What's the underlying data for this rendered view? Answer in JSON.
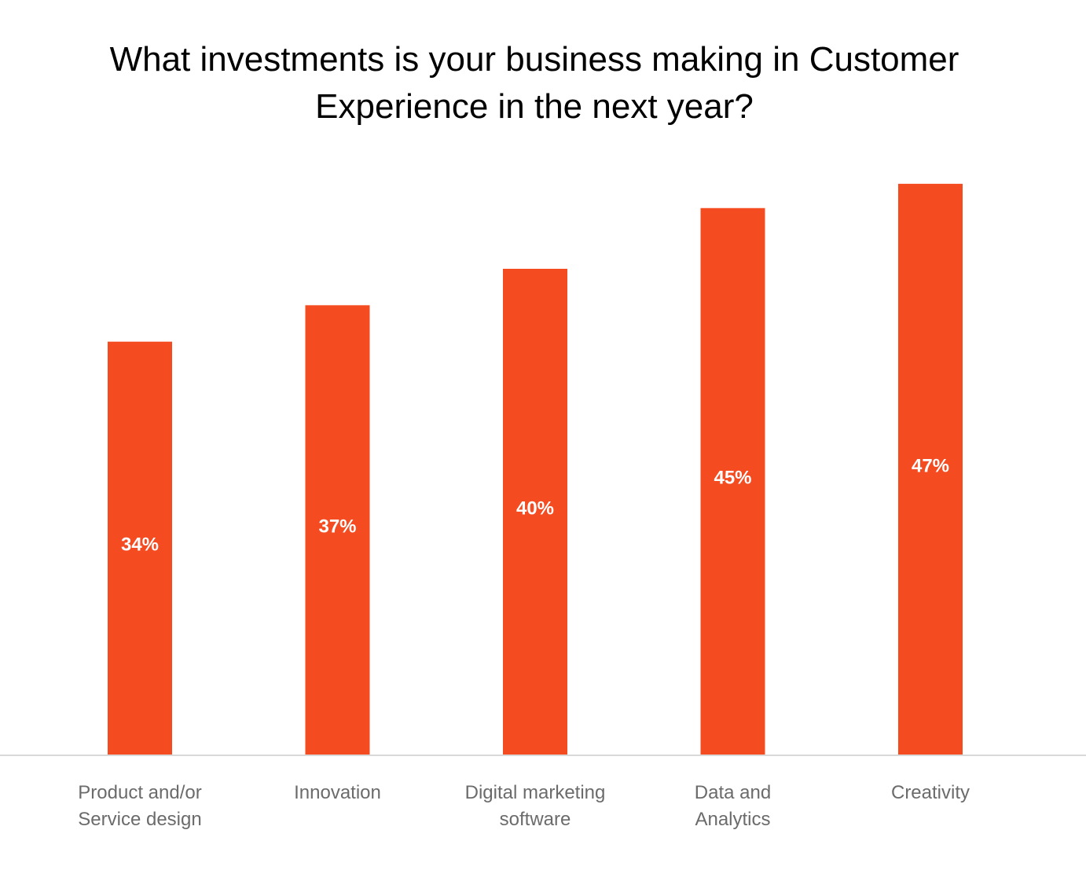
{
  "chart_data": {
    "type": "bar",
    "title_lines": [
      "What investments is your business making in Customer",
      "Experience in the next year?"
    ],
    "categories": [
      [
        "Product and/or",
        "Service design"
      ],
      [
        "Innovation"
      ],
      [
        "Digital marketing",
        "software"
      ],
      [
        "Data and",
        "Analytics"
      ],
      [
        "Creativity"
      ]
    ],
    "values": [
      34,
      37,
      40,
      45,
      47
    ],
    "data_labels": [
      "34%",
      "37%",
      "40%",
      "45%",
      "47%"
    ],
    "unit": "%",
    "xlabel": "",
    "ylabel": "",
    "ylim": [
      0,
      100
    ],
    "y_axis_visible": false,
    "grid": false,
    "legend": "none",
    "colors": {
      "bar": "#F44B21",
      "data_label": "#FFFFFF",
      "category_label": "#6B6B6B",
      "baseline": "#D9D9D9",
      "title": "#000000"
    }
  }
}
